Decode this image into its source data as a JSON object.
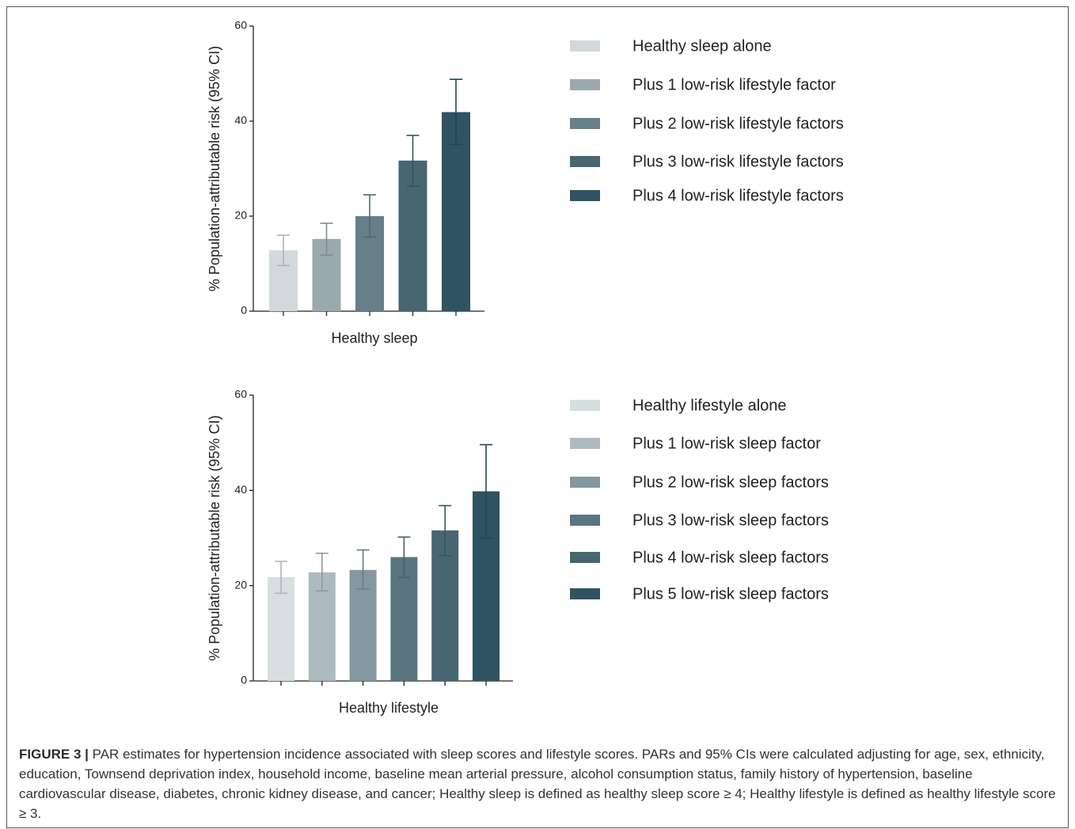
{
  "chart_data": [
    {
      "type": "bar",
      "y_label": "% Population-attributable risk (95% CI)",
      "categories": [
        "Healthy sleep"
      ],
      "ylim": [
        0,
        60
      ],
      "yticks": [
        0,
        20,
        40,
        60
      ],
      "series": [
        {
          "name": "Healthy sleep alone",
          "color": "#d2d9dc",
          "values": [
            12.8
          ],
          "lower": [
            9.6
          ],
          "upper": [
            16.0
          ]
        },
        {
          "name": "Plus 1 low-risk lifestyle factor",
          "color": "#9aa9ae",
          "values": [
            15.2
          ],
          "lower": [
            11.8
          ],
          "upper": [
            18.5
          ]
        },
        {
          "name": "Plus 2 low-risk lifestyle factors",
          "color": "#667f88",
          "values": [
            20.0
          ],
          "lower": [
            15.6
          ],
          "upper": [
            24.5
          ]
        },
        {
          "name": "Plus 3 low-risk lifestyle factors",
          "color": "#466672",
          "values": [
            31.7
          ],
          "lower": [
            26.3
          ],
          "upper": [
            37.0
          ]
        },
        {
          "name": "Plus 4 low-risk lifestyle factors",
          "color": "#2f5362",
          "values": [
            41.9
          ],
          "lower": [
            35.1
          ],
          "upper": [
            48.8
          ]
        }
      ]
    },
    {
      "type": "bar",
      "y_label": "% Population-attributable risk (95% CI)",
      "categories": [
        "Healthy lifestyle"
      ],
      "ylim": [
        0,
        60
      ],
      "yticks": [
        0,
        20,
        40,
        60
      ],
      "series": [
        {
          "name": "Healthy lifestyle alone",
          "color": "#d6dee0",
          "values": [
            21.8
          ],
          "lower": [
            18.4
          ],
          "upper": [
            25.1
          ]
        },
        {
          "name": "Plus 1 low-risk sleep factor",
          "color": "#adbbc0",
          "values": [
            22.8
          ],
          "lower": [
            18.9
          ],
          "upper": [
            26.8
          ]
        },
        {
          "name": "Plus 2 low-risk sleep factors",
          "color": "#83989f",
          "values": [
            23.3
          ],
          "lower": [
            19.3
          ],
          "upper": [
            27.5
          ]
        },
        {
          "name": "Plus 3 low-risk sleep factors",
          "color": "#5a7580",
          "values": [
            26.0
          ],
          "lower": [
            21.7
          ],
          "upper": [
            30.2
          ]
        },
        {
          "name": "Plus 4 low-risk sleep factors",
          "color": "#466672",
          "values": [
            31.6
          ],
          "lower": [
            26.3
          ],
          "upper": [
            36.8
          ]
        },
        {
          "name": "Plus 5 low-risk sleep factors",
          "color": "#2f5362",
          "values": [
            39.8
          ],
          "lower": [
            30.0
          ],
          "upper": [
            49.6
          ]
        }
      ]
    }
  ],
  "figure_label": "FIGURE 3 |",
  "caption": "PAR estimates for hypertension incidence associated with sleep scores and lifestyle scores. PARs and 95% CIs were calculated adjusting for age, sex, ethnicity, education, Townsend deprivation index, household income, baseline mean arterial pressure, alcohol consumption status, family history of hypertension, baseline cardiovascular disease, diabetes, chronic kidney disease, and cancer; Healthy sleep is defined as healthy sleep score ≥ 4; Healthy lifestyle is defined as healthy lifestyle score ≥ 3."
}
